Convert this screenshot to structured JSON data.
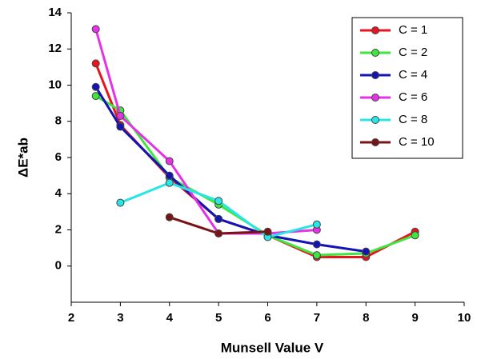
{
  "chart_data": {
    "type": "line",
    "x_label": "Munsell Value V",
    "y_label": "ΔE*ab",
    "xlim": [
      2,
      10
    ],
    "xticks": [
      2,
      3,
      4,
      5,
      6,
      7,
      8,
      9,
      10
    ],
    "ylim": [
      -2,
      14
    ],
    "yticks": [
      0,
      2,
      4,
      6,
      8,
      10,
      12,
      14
    ],
    "legend": "upper-right",
    "series": [
      {
        "name": "C = 1",
        "color": "#e8141e",
        "x": [
          2.5,
          3,
          4,
          5,
          6,
          7,
          8,
          9
        ],
        "values": [
          11.2,
          7.8,
          4.9,
          2.6,
          1.7,
          0.5,
          0.5,
          1.9
        ]
      },
      {
        "name": "C = 2",
        "color": "#3ee63e",
        "x": [
          2.5,
          3,
          4,
          5,
          6,
          7,
          8,
          9
        ],
        "values": [
          9.4,
          8.6,
          4.9,
          3.4,
          1.7,
          0.6,
          0.7,
          1.7
        ]
      },
      {
        "name": "C = 4",
        "color": "#1414b4",
        "x": [
          2.5,
          3,
          4,
          5,
          6,
          7,
          8
        ],
        "values": [
          9.9,
          7.7,
          5.0,
          2.6,
          1.7,
          1.2,
          0.8
        ]
      },
      {
        "name": "C = 6",
        "color": "#e632e6",
        "x": [
          2.5,
          3,
          4,
          5,
          6,
          7
        ],
        "values": [
          13.1,
          8.3,
          5.8,
          1.8,
          1.8,
          2.0
        ]
      },
      {
        "name": "C = 8",
        "color": "#28e6e6",
        "x": [
          3,
          4,
          5,
          6,
          7
        ],
        "values": [
          3.5,
          4.6,
          3.6,
          1.6,
          2.3
        ]
      },
      {
        "name": "C = 10",
        "color": "#7a1414",
        "x": [
          4,
          5,
          6
        ],
        "values": [
          2.7,
          1.8,
          1.9
        ]
      }
    ]
  }
}
